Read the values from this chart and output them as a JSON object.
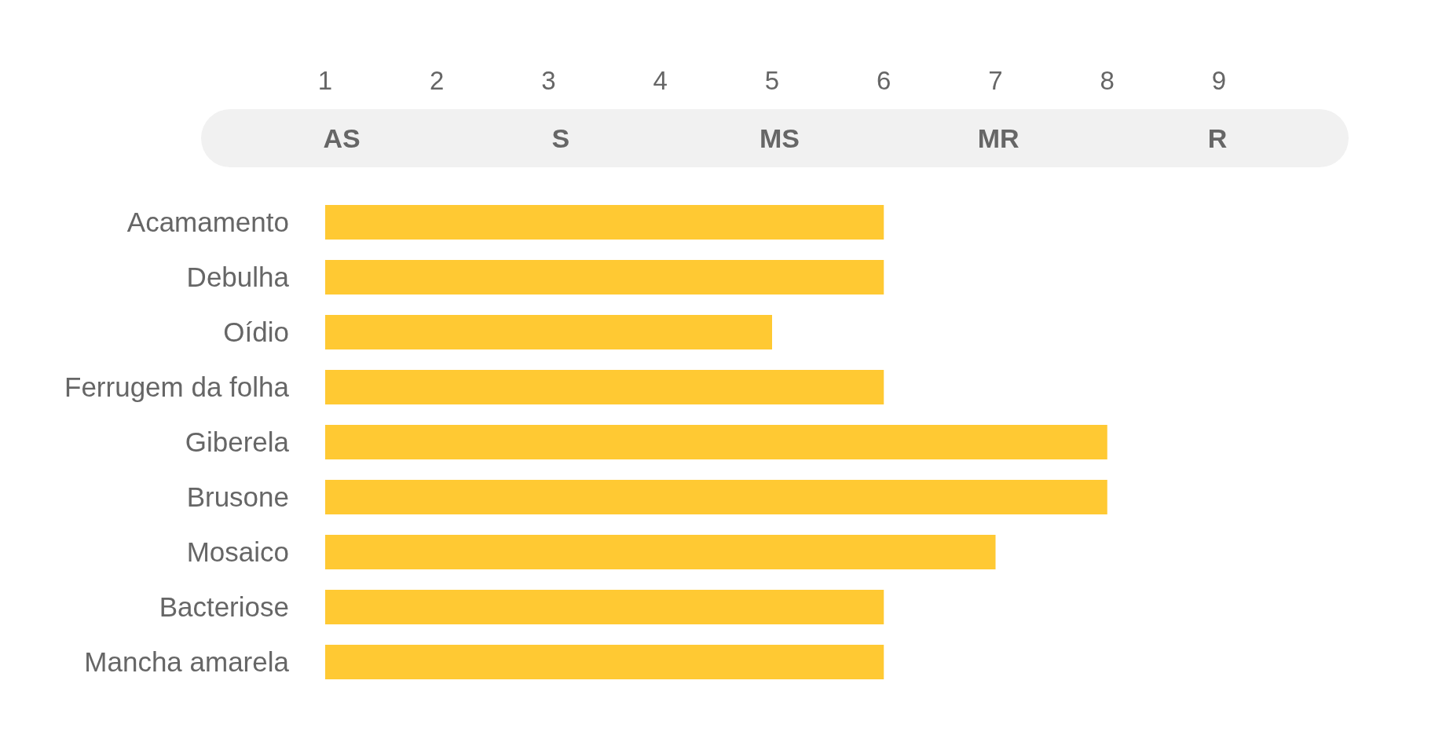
{
  "chart_data": {
    "type": "bar",
    "orientation": "horizontal",
    "categories": [
      "Acamamento",
      "Debulha",
      "Oídio",
      "Ferrugem da folha",
      "Giberela",
      "Brusone",
      "Mosaico",
      "Bacteriose",
      "Mancha amarela"
    ],
    "values": [
      6,
      6,
      5,
      6,
      8,
      8,
      7,
      6,
      6
    ],
    "color": "#ffc933",
    "xlim": [
      1,
      9
    ],
    "xticks": [
      1,
      2,
      3,
      4,
      5,
      6,
      7,
      8,
      9
    ],
    "annotations": [
      "AS",
      "S",
      "MS",
      "MR",
      "R"
    ]
  }
}
